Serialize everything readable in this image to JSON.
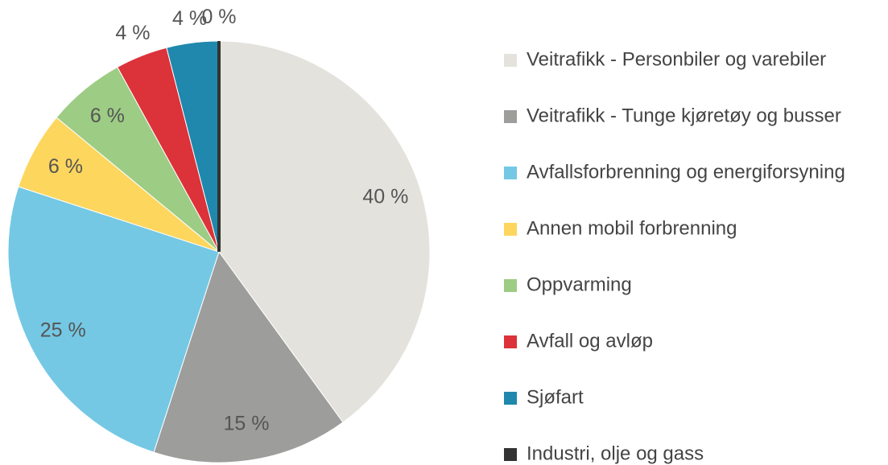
{
  "chart_data": {
    "type": "pie",
    "categories": [
      "Veitrafikk - Personbiler og varebiler",
      "Veitrafikk - Tunge kjøretøy og busser",
      "Avfallsforbrenning og energiforsyning",
      "Annen mobil forbrenning",
      "Oppvarming",
      "Avfall og avløp",
      "Sjøfart",
      "Industri, olje og gass"
    ],
    "values": [
      40,
      15,
      25,
      6,
      6,
      4,
      4,
      0
    ],
    "value_labels": [
      "40 %",
      "15 %",
      "25 %",
      "6 %",
      "6 %",
      "4 %",
      "4 %",
      "0 %"
    ],
    "colors": [
      "#e4e2dc",
      "#9d9d9c",
      "#74c8e4",
      "#fdd65e",
      "#9dcc85",
      "#dc3239",
      "#1f88ac",
      "#333333"
    ],
    "legend": "right"
  }
}
